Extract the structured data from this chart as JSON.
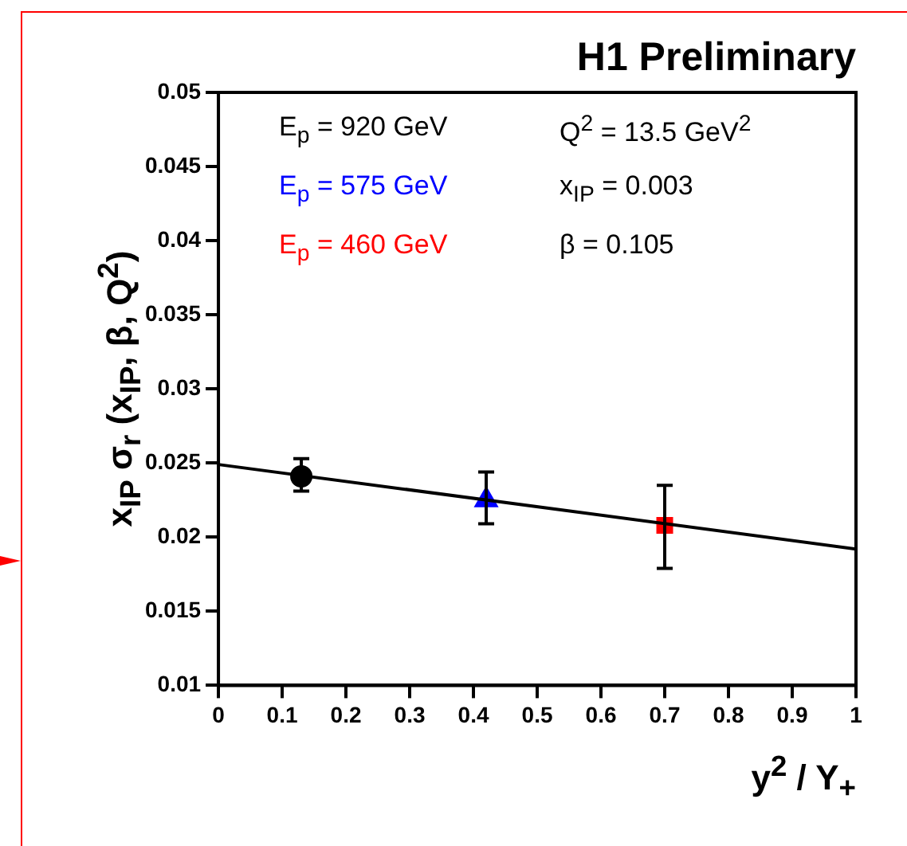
{
  "chart_data": {
    "type": "scatter",
    "title": "H1 Preliminary",
    "xlabel": "y$^{2}$ / Y$_{+}$",
    "ylabel": "x$_{IP}$ σ$_{r}$ (x$_{IP}$, β, Q$^{2}$)",
    "xlim": [
      0,
      1
    ],
    "xticks": [
      0,
      0.1,
      0.2,
      0.3,
      0.4,
      0.5,
      0.6,
      0.7,
      0.8,
      0.9,
      1
    ],
    "ylim": [
      0.01,
      0.05
    ],
    "yticks": [
      0.01,
      0.015,
      0.02,
      0.025,
      0.03,
      0.035,
      0.04,
      0.045,
      0.05
    ],
    "grid": false,
    "legend": "top left",
    "annotations": [
      "Q$^{2}$ = 13.5 GeV$^{2}$",
      "x$_{IP}$ = 0.003",
      "β  = 0.105"
    ],
    "series": [
      {
        "name": "E$_{p}$ = 920 GeV",
        "marker": "circle",
        "color": "#000000",
        "x": [
          0.13
        ],
        "values": [
          0.0241
        ],
        "errors": [
          [
            0.0231,
            0.0253
          ]
        ]
      },
      {
        "name": "E$_{p}$ = 575 GeV",
        "marker": "triangle",
        "color": "#0000ff",
        "x": [
          0.42
        ],
        "values": [
          0.0225
        ],
        "errors": [
          [
            0.0209,
            0.0244
          ]
        ]
      },
      {
        "name": "E$_{p}$ = 460 GeV",
        "marker": "square",
        "color": "#ff0000",
        "x": [
          0.7
        ],
        "values": [
          0.0208
        ],
        "errors": [
          [
            0.0179,
            0.0235
          ]
        ]
      },
      {
        "type": "line",
        "marker": "none",
        "color": "#000000",
        "x": [
          0,
          1
        ],
        "values": [
          0.0249,
          0.0192
        ]
      }
    ]
  }
}
